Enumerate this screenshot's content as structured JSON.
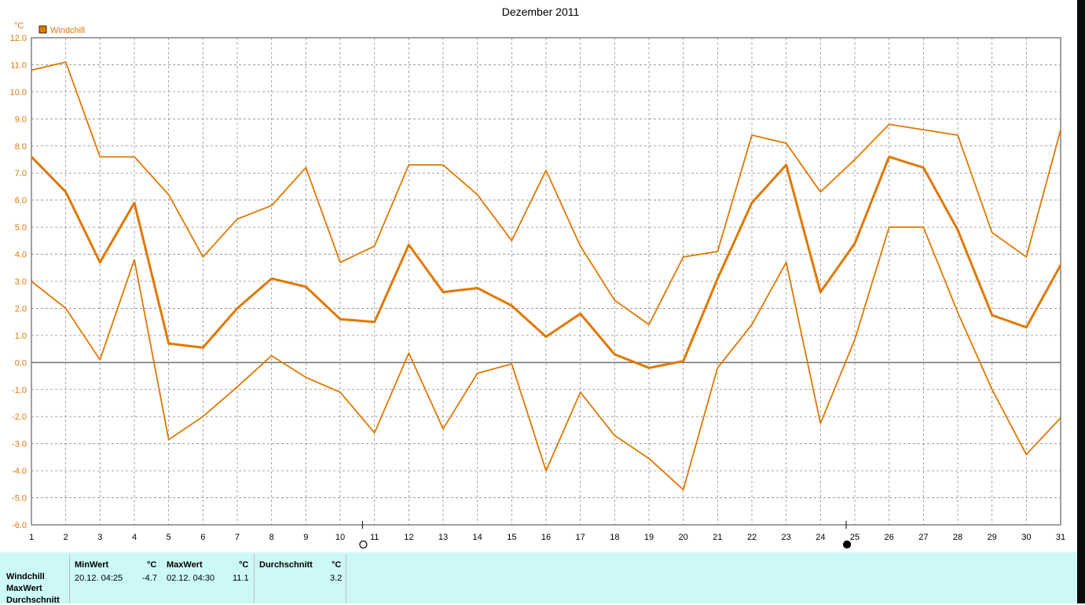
{
  "chart_data": {
    "type": "line",
    "title": "Dezember 2011",
    "ylabel": "°C",
    "legend": {
      "label": "Windchill",
      "color": "#e07800",
      "placement": "top-left"
    },
    "ylim": [
      -6.0,
      12.0
    ],
    "xlim": [
      1,
      31
    ],
    "y_ticks": [
      "12.0",
      "11.0",
      "10.0",
      "9.0",
      "8.0",
      "7.0",
      "6.0",
      "5.0",
      "4.0",
      "3.0",
      "2.0",
      "1.0",
      "0.0",
      "-1.0",
      "-2.0",
      "-3.0",
      "-4.0",
      "-5.0",
      "-6.0"
    ],
    "x": [
      1,
      2,
      3,
      4,
      5,
      6,
      7,
      8,
      9,
      10,
      11,
      12,
      13,
      14,
      15,
      16,
      17,
      18,
      19,
      20,
      21,
      22,
      23,
      24,
      25,
      26,
      27,
      28,
      29,
      30,
      31
    ],
    "grid": true,
    "series": [
      {
        "role": "max",
        "color": "#e07800",
        "values": [
          10.8,
          11.1,
          7.6,
          7.6,
          6.2,
          3.9,
          5.3,
          5.8,
          7.2,
          3.7,
          4.3,
          7.3,
          7.3,
          6.2,
          4.5,
          7.1,
          4.3,
          2.3,
          1.4,
          3.9,
          4.1,
          8.4,
          8.1,
          6.3,
          7.5,
          8.8,
          8.6,
          8.4,
          4.8,
          3.9,
          8.6
        ]
      },
      {
        "role": "avg",
        "color": "#e07800",
        "values": [
          7.6,
          6.3,
          3.7,
          5.9,
          0.7,
          0.55,
          2.0,
          3.1,
          2.8,
          1.6,
          1.5,
          4.35,
          2.6,
          2.75,
          2.1,
          0.95,
          1.8,
          0.3,
          -0.2,
          0.05,
          3.1,
          5.9,
          7.3,
          2.6,
          4.4,
          7.6,
          7.2,
          4.9,
          1.75,
          1.3,
          3.6
        ]
      },
      {
        "role": "min",
        "color": "#e07800",
        "values": [
          3.0,
          2.0,
          0.1,
          3.8,
          -2.85,
          -2.0,
          -0.9,
          0.25,
          -0.55,
          -1.1,
          -2.6,
          0.35,
          -2.45,
          -0.4,
          -0.05,
          -4.0,
          -1.1,
          -2.7,
          -3.55,
          -4.7,
          -0.2,
          1.4,
          3.7,
          -2.25,
          0.85,
          5.0,
          5.0,
          1.85,
          -1.0,
          -3.4,
          -2.05
        ]
      }
    ],
    "moon_markers": [
      {
        "x": 10.65,
        "phase": "full-moon"
      },
      {
        "x": 24.75,
        "phase": "new-moon"
      }
    ]
  },
  "stats": {
    "rows": [
      "Windchill",
      "MaxWert",
      "Durchschnitt"
    ],
    "min": {
      "header": "MinWert",
      "unit": "°C",
      "when": "20.12.  04:25",
      "value": "-4.7"
    },
    "max": {
      "header": "MaxWert",
      "unit": "°C",
      "when": "02.12.  04:30",
      "value": "11.1"
    },
    "avg": {
      "header": "Durchschnitt",
      "unit": "°C",
      "value": "3.2"
    }
  }
}
